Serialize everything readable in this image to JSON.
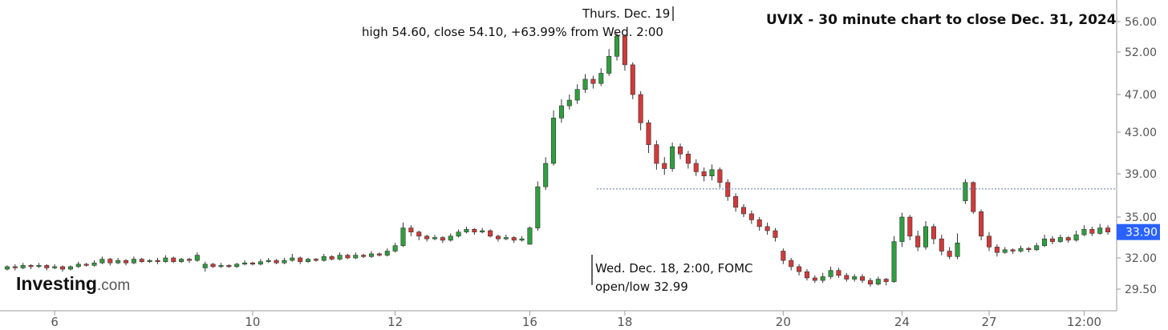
{
  "chart_data": {
    "type": "candlestick",
    "title": "UVIX - 30 minute chart to close Dec. 31, 2024",
    "y_ticks": [
      "56.00",
      "52.00",
      "47.00",
      "43.00",
      "39.00",
      "35.00",
      "32.00",
      "29.50"
    ],
    "x_ticks": [
      "6",
      "10",
      "12",
      "16",
      "18",
      "20",
      "24",
      "27",
      "12:00"
    ],
    "current_price": "33.90",
    "reference_level": 37.6,
    "annotations": {
      "peak_line1": "Thurs. Dec. 19",
      "peak_line2": "high 54.60, close 54.10, +63.99% from Wed. 2:00",
      "fomc_line1": "Wed. Dec. 18, 2:00, FOMC",
      "fomc_line2": "open/low 32.99"
    },
    "colors": {
      "up": "#2f9e3f",
      "down": "#d23a3a",
      "price_tag": "#2962ff",
      "ref_line": "#5b7bb5"
    },
    "candles": [
      [
        31.1,
        31.3,
        31.4,
        31.0
      ],
      [
        31.3,
        31.2,
        31.5,
        31.0
      ],
      [
        31.2,
        31.4,
        31.6,
        31.1
      ],
      [
        31.4,
        31.3,
        31.5,
        31.1
      ],
      [
        31.3,
        31.4,
        31.6,
        31.2
      ],
      [
        31.4,
        31.2,
        31.5,
        31.0
      ],
      [
        31.2,
        31.3,
        31.5,
        31.1
      ],
      [
        31.3,
        31.1,
        31.4,
        30.9
      ],
      [
        31.1,
        31.3,
        31.4,
        31.0
      ],
      [
        31.3,
        31.5,
        31.7,
        31.2
      ],
      [
        31.5,
        31.4,
        31.6,
        31.3
      ],
      [
        31.4,
        31.6,
        31.8,
        31.3
      ],
      [
        31.6,
        31.9,
        32.1,
        31.5
      ],
      [
        31.9,
        31.6,
        32.0,
        31.4
      ],
      [
        31.6,
        31.8,
        32.0,
        31.5
      ],
      [
        31.8,
        31.6,
        31.9,
        31.4
      ],
      [
        31.6,
        31.9,
        32.1,
        31.5
      ],
      [
        31.9,
        31.7,
        32.0,
        31.6
      ],
      [
        31.7,
        31.8,
        31.9,
        31.6
      ],
      [
        31.8,
        31.7,
        32.0,
        31.5
      ],
      [
        31.7,
        32.0,
        32.2,
        31.6
      ],
      [
        32.0,
        31.7,
        32.1,
        31.6
      ],
      [
        31.7,
        31.9,
        32.0,
        31.6
      ],
      [
        31.9,
        31.8,
        32.0,
        31.6
      ],
      [
        31.8,
        32.2,
        32.4,
        31.7
      ],
      [
        31.2,
        31.5,
        31.7,
        30.9
      ],
      [
        31.5,
        31.3,
        31.6,
        31.2
      ],
      [
        31.3,
        31.4,
        31.6,
        31.2
      ],
      [
        31.4,
        31.3,
        31.5,
        31.2
      ],
      [
        31.3,
        31.5,
        31.6,
        31.2
      ],
      [
        31.5,
        31.6,
        31.8,
        31.4
      ],
      [
        31.6,
        31.5,
        31.7,
        31.4
      ],
      [
        31.5,
        31.7,
        31.9,
        31.4
      ],
      [
        31.7,
        31.8,
        32.0,
        31.6
      ],
      [
        31.8,
        31.6,
        31.9,
        31.5
      ],
      [
        31.6,
        31.8,
        32.0,
        31.5
      ],
      [
        31.8,
        32.0,
        32.3,
        31.7
      ],
      [
        32.0,
        31.7,
        32.1,
        31.5
      ],
      [
        31.7,
        31.9,
        32.0,
        31.6
      ],
      [
        31.9,
        31.8,
        32.0,
        31.7
      ],
      [
        31.8,
        32.1,
        32.3,
        31.7
      ],
      [
        32.1,
        31.9,
        32.2,
        31.8
      ],
      [
        31.9,
        32.2,
        32.4,
        31.8
      ],
      [
        32.2,
        32.0,
        32.3,
        31.9
      ],
      [
        32.0,
        32.2,
        32.4,
        31.9
      ],
      [
        32.2,
        32.1,
        32.3,
        32.0
      ],
      [
        32.1,
        32.3,
        32.5,
        32.0
      ],
      [
        32.3,
        32.2,
        32.4,
        32.1
      ],
      [
        32.2,
        32.5,
        32.7,
        32.1
      ],
      [
        32.5,
        32.9,
        33.1,
        32.4
      ],
      [
        32.9,
        34.2,
        34.6,
        32.8
      ],
      [
        34.2,
        33.9,
        34.4,
        33.6
      ],
      [
        33.9,
        33.6,
        34.0,
        33.3
      ],
      [
        33.6,
        33.4,
        33.7,
        33.2
      ],
      [
        33.4,
        33.5,
        33.7,
        33.3
      ],
      [
        33.5,
        33.3,
        33.6,
        33.1
      ],
      [
        33.3,
        33.6,
        33.8,
        33.2
      ],
      [
        33.6,
        33.9,
        34.1,
        33.5
      ],
      [
        33.9,
        34.1,
        34.3,
        33.8
      ],
      [
        34.1,
        33.9,
        34.2,
        33.7
      ],
      [
        33.9,
        34.0,
        34.2,
        33.8
      ],
      [
        34.0,
        33.6,
        34.1,
        33.5
      ],
      [
        33.6,
        33.4,
        33.7,
        33.2
      ],
      [
        33.4,
        33.5,
        33.7,
        33.3
      ],
      [
        33.5,
        33.3,
        33.6,
        33.1
      ],
      [
        33.3,
        33.4,
        33.6,
        33.2
      ],
      [
        33.0,
        34.2,
        34.3,
        32.99
      ],
      [
        34.2,
        37.8,
        38.3,
        34.0
      ],
      [
        37.8,
        40.0,
        40.6,
        37.5
      ],
      [
        40.0,
        44.5,
        45.3,
        39.8
      ],
      [
        44.5,
        45.8,
        46.5,
        44.0
      ],
      [
        45.8,
        46.4,
        47.0,
        45.4
      ],
      [
        46.4,
        47.6,
        48.2,
        46.0
      ],
      [
        47.6,
        48.8,
        49.4,
        47.2
      ],
      [
        48.8,
        48.3,
        49.2,
        47.7
      ],
      [
        48.3,
        49.5,
        50.1,
        48.0
      ],
      [
        49.5,
        51.5,
        52.4,
        49.2
      ],
      [
        51.5,
        54.1,
        54.6,
        51.0
      ],
      [
        54.1,
        50.5,
        54.3,
        49.8
      ],
      [
        50.5,
        47.0,
        50.8,
        46.5
      ],
      [
        47.0,
        44.0,
        47.4,
        43.2
      ],
      [
        44.0,
        41.8,
        44.3,
        41.0
      ],
      [
        41.8,
        40.0,
        42.2,
        39.4
      ],
      [
        40.0,
        39.5,
        40.6,
        38.9
      ],
      [
        39.5,
        41.6,
        42.0,
        39.2
      ],
      [
        41.6,
        40.9,
        41.9,
        40.4
      ],
      [
        40.9,
        40.0,
        41.2,
        39.5
      ],
      [
        40.0,
        39.2,
        40.4,
        38.8
      ],
      [
        39.2,
        38.8,
        39.6,
        38.3
      ],
      [
        38.8,
        39.4,
        39.9,
        38.4
      ],
      [
        39.4,
        38.2,
        39.6,
        37.7
      ],
      [
        38.2,
        36.9,
        38.5,
        36.5
      ],
      [
        36.9,
        35.9,
        37.2,
        35.5
      ],
      [
        35.9,
        35.3,
        36.2,
        35.0
      ],
      [
        35.3,
        34.8,
        35.6,
        34.5
      ],
      [
        34.8,
        34.3,
        35.0,
        34.0
      ],
      [
        34.3,
        34.0,
        34.6,
        33.7
      ],
      [
        34.0,
        33.5,
        34.2,
        33.2
      ],
      [
        32.5,
        31.8,
        32.7,
        31.5
      ],
      [
        31.8,
        31.3,
        32.0,
        31.0
      ],
      [
        31.3,
        30.9,
        31.5,
        30.6
      ],
      [
        30.9,
        30.4,
        31.1,
        30.2
      ],
      [
        30.4,
        30.2,
        30.6,
        30.0
      ],
      [
        30.2,
        30.5,
        30.8,
        30.0
      ],
      [
        30.5,
        31.0,
        31.3,
        30.3
      ],
      [
        31.0,
        30.6,
        31.2,
        30.4
      ],
      [
        30.6,
        30.3,
        30.8,
        30.1
      ],
      [
        30.3,
        30.5,
        30.7,
        30.1
      ],
      [
        30.5,
        30.2,
        30.7,
        30.0
      ],
      [
        30.2,
        29.9,
        30.4,
        29.7
      ],
      [
        29.9,
        30.3,
        30.5,
        29.8
      ],
      [
        30.3,
        30.1,
        30.4,
        29.8
      ],
      [
        30.1,
        33.2,
        33.6,
        30.0
      ],
      [
        33.2,
        35.0,
        35.4,
        32.8
      ],
      [
        35.0,
        33.6,
        35.2,
        33.3
      ],
      [
        33.6,
        32.8,
        34.0,
        32.5
      ],
      [
        32.8,
        34.3,
        34.7,
        32.6
      ],
      [
        34.3,
        33.4,
        34.5,
        33.0
      ],
      [
        33.4,
        32.5,
        33.7,
        32.2
      ],
      [
        32.5,
        32.1,
        32.8,
        31.9
      ],
      [
        32.1,
        33.1,
        33.8,
        31.9
      ],
      [
        36.5,
        38.2,
        38.5,
        36.2
      ],
      [
        38.2,
        35.5,
        38.3,
        35.3
      ],
      [
        35.5,
        33.6,
        35.7,
        33.3
      ],
      [
        33.6,
        32.8,
        33.9,
        32.5
      ],
      [
        32.8,
        32.4,
        33.0,
        32.1
      ],
      [
        32.4,
        32.6,
        32.8,
        32.3
      ],
      [
        32.6,
        32.5,
        32.7,
        32.3
      ],
      [
        32.5,
        32.7,
        32.9,
        32.4
      ],
      [
        32.7,
        32.6,
        32.8,
        32.4
      ],
      [
        32.6,
        32.9,
        33.1,
        32.5
      ],
      [
        32.9,
        33.4,
        33.7,
        32.8
      ],
      [
        33.4,
        33.2,
        33.6,
        33.0
      ],
      [
        33.2,
        33.5,
        33.7,
        33.1
      ],
      [
        33.5,
        33.3,
        33.6,
        33.1
      ],
      [
        33.3,
        33.7,
        34.0,
        33.2
      ],
      [
        33.7,
        34.1,
        34.4,
        33.6
      ],
      [
        34.1,
        33.8,
        34.3,
        33.6
      ],
      [
        33.8,
        34.2,
        34.5,
        33.7
      ],
      [
        34.2,
        33.9,
        34.4,
        33.7
      ]
    ],
    "x_ticks_at": [
      6,
      31,
      49,
      66,
      78,
      98,
      113,
      124,
      136
    ]
  }
}
